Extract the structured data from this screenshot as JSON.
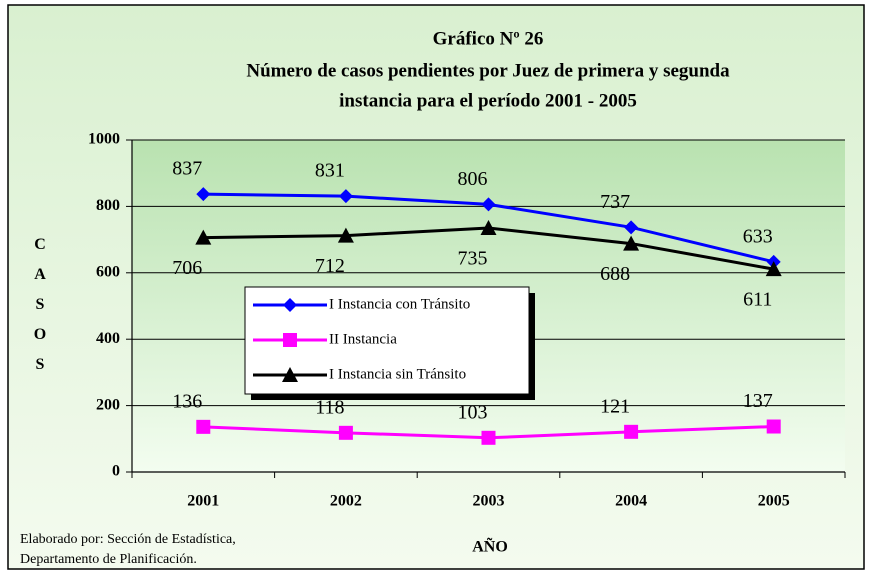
{
  "chart_data": {
    "type": "line",
    "title": "Gráfico Nº 26",
    "subtitle": [
      "Número de casos pendientes por Juez de primera y segunda",
      "instancia  para el período  2001 - 2005"
    ],
    "ylabel": "CASOS",
    "xlabel": "AÑO",
    "note": [
      "Elaborado por: Sección de Estadística,",
      "Departamento de Planificación."
    ],
    "categories": [
      "2001",
      "2002",
      "2003",
      "2004",
      "2005"
    ],
    "series": [
      {
        "name": "I Instancia con Tránsito",
        "color": "#0000ff",
        "marker": "diamond",
        "values": [
          837,
          831,
          806,
          737,
          633
        ]
      },
      {
        "name": "II Instancia",
        "color": "#ff00ff",
        "marker": "square",
        "values": [
          136,
          118,
          103,
          121,
          137
        ]
      },
      {
        "name": "I Instancia sin Tránsito",
        "color": "#000000",
        "marker": "triangle",
        "values": [
          706,
          712,
          735,
          688,
          611
        ]
      }
    ],
    "ylim": [
      0,
      1000
    ],
    "yticks": [
      0,
      200,
      400,
      600,
      800,
      1000
    ],
    "grid": true
  }
}
